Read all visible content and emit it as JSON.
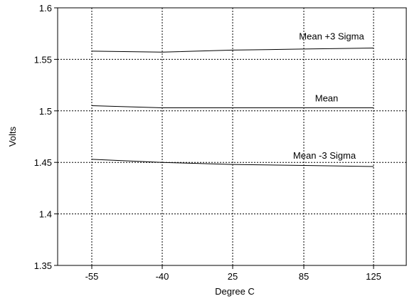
{
  "chart_data": {
    "type": "line",
    "title": "",
    "xlabel": "Degree C",
    "ylabel": "Volts",
    "categories": [
      "-55",
      "-40",
      "25",
      "85",
      "125"
    ],
    "ylim": [
      1.35,
      1.6
    ],
    "yticks": [
      "1.35",
      "1.4",
      "1.45",
      "1.5",
      "1.55",
      "1.6"
    ],
    "grid": true,
    "series": [
      {
        "name": "Mean +3 Sigma",
        "values": [
          1.558,
          1.557,
          1.559,
          1.56,
          1.561
        ]
      },
      {
        "name": "Mean",
        "values": [
          1.505,
          1.503,
          1.503,
          1.503,
          1.503
        ]
      },
      {
        "name": "Mean -3 Sigma",
        "values": [
          1.453,
          1.45,
          1.448,
          1.447,
          1.446
        ]
      }
    ]
  }
}
